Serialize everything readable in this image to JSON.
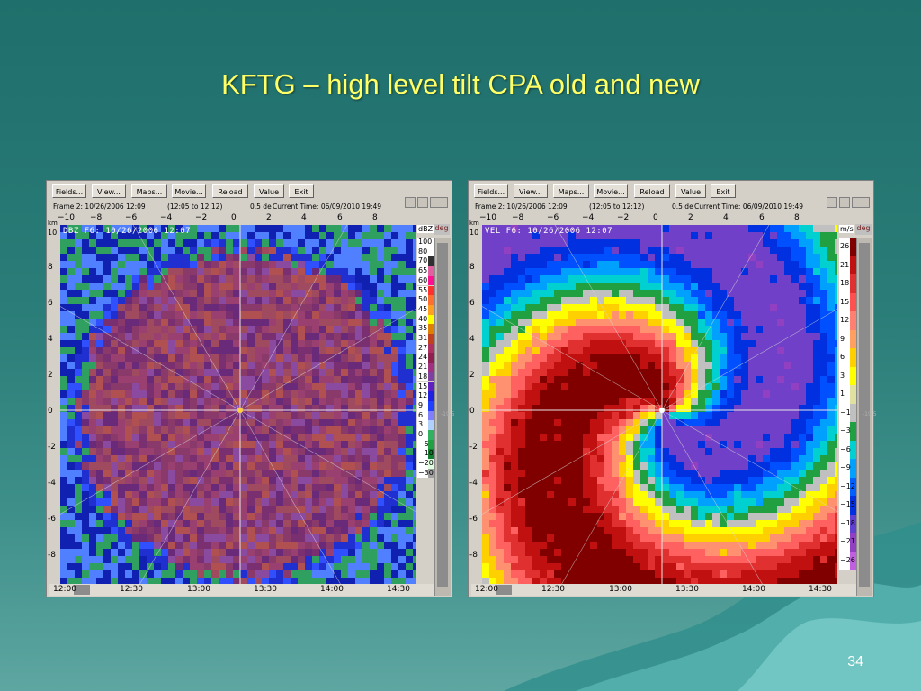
{
  "slide": {
    "title": "KFTG – high level tilt CPA old and new",
    "page_number": "34"
  },
  "panels": [
    {
      "name": "dbz",
      "buttons": [
        "Fields...",
        "View...",
        "Maps...",
        "Movie...",
        "Reload",
        "Value",
        "Exit"
      ],
      "frame_info": "Frame 2: 10/26/2006 12:09",
      "range_info": "(12:05 to 12:12)",
      "tilt_info": "0.5 de",
      "current_time": "Current Time: 06/09/2010 19:49",
      "overlay_label": "DBZ F6: 10/26/2006 12:07",
      "x_ticks": [
        "−10",
        "−8",
        "−6",
        "−4",
        "−2",
        "0",
        "2",
        "4",
        "6",
        "8"
      ],
      "y_ticks": [
        "10",
        "8",
        "6",
        "4",
        "2",
        "0",
        "-2",
        "-4",
        "-6",
        "-8"
      ],
      "axis_unit": "km",
      "colorbar_unit": "dBZ",
      "colorbar_deg": "deg",
      "side_value": "-19.5",
      "colorbar": [
        {
          "label": "100",
          "color": "#ffffff"
        },
        {
          "label": "80",
          "color": "#ffffff"
        },
        {
          "label": "70",
          "color": "#303030"
        },
        {
          "label": "65",
          "color": "#e060a0"
        },
        {
          "label": "60",
          "color": "#ff1090"
        },
        {
          "label": "55",
          "color": "#ff3030"
        },
        {
          "label": "50",
          "color": "#ff7030"
        },
        {
          "label": "45",
          "color": "#ffa020"
        },
        {
          "label": "40",
          "color": "#ffff00"
        },
        {
          "label": "35",
          "color": "#e08000"
        },
        {
          "label": "31",
          "color": "#c04020"
        },
        {
          "label": "27",
          "color": "#b03060"
        },
        {
          "label": "24",
          "color": "#902050"
        },
        {
          "label": "21",
          "color": "#a03080"
        },
        {
          "label": "18",
          "color": "#8040a0"
        },
        {
          "label": "15",
          "color": "#6020c0"
        },
        {
          "label": "12",
          "color": "#2020e0"
        },
        {
          "label": "9",
          "color": "#2040ff"
        },
        {
          "label": "6",
          "color": "#8080ff"
        },
        {
          "label": "3",
          "color": "#b0d0ff"
        },
        {
          "label": "0",
          "color": "#30b060"
        },
        {
          "label": "−5",
          "color": "#20a040"
        },
        {
          "label": "−10",
          "color": "#108030"
        },
        {
          "label": "−20",
          "color": "#e0ffe0"
        },
        {
          "label": "−30",
          "color": "#a0a0a0"
        }
      ],
      "time_labels": [
        "12:00",
        "12:30",
        "13:00",
        "13:30",
        "14:00",
        "14:30"
      ]
    },
    {
      "name": "vel",
      "buttons": [
        "Fields...",
        "View...",
        "Maps...",
        "Movie...",
        "Reload",
        "Value",
        "Exit"
      ],
      "frame_info": "Frame 2: 10/26/2006 12:09",
      "range_info": "(12:05 to 12:12)",
      "tilt_info": "0.5 de",
      "current_time": "Current Time: 06/09/2010 19:49",
      "overlay_label": "VEL F6: 10/26/2006 12:07",
      "x_ticks": [
        "−10",
        "−8",
        "−6",
        "−4",
        "−2",
        "0",
        "2",
        "4",
        "6",
        "8"
      ],
      "y_ticks": [
        "10",
        "8",
        "6",
        "4",
        "2",
        "0",
        "-2",
        "-4",
        "-6",
        "-8"
      ],
      "axis_unit": "km",
      "colorbar_unit": "m/s",
      "colorbar_deg": "deg",
      "side_value": "-19.5",
      "colorbar": [
        {
          "label": "26",
          "color": "#800000"
        },
        {
          "label": "21",
          "color": "#c01010"
        },
        {
          "label": "18",
          "color": "#e03030"
        },
        {
          "label": "15",
          "color": "#ff5050"
        },
        {
          "label": "12",
          "color": "#ff8070"
        },
        {
          "label": "9",
          "color": "#ffa060"
        },
        {
          "label": "6",
          "color": "#ffd000"
        },
        {
          "label": "3",
          "color": "#ffff00"
        },
        {
          "label": "1",
          "color": "#e0e0a0"
        },
        {
          "label": "−1",
          "color": "#c0c0c0"
        },
        {
          "label": "−3",
          "color": "#20a040"
        },
        {
          "label": "−6",
          "color": "#00d0d0"
        },
        {
          "label": "−9",
          "color": "#00a0ff"
        },
        {
          "label": "−12",
          "color": "#0060ff"
        },
        {
          "label": "−15",
          "color": "#0030e0"
        },
        {
          "label": "−18",
          "color": "#6040d0"
        },
        {
          "label": "−21",
          "color": "#9040c0"
        },
        {
          "label": "−26",
          "color": "#c060e0"
        }
      ],
      "time_labels": [
        "12:00",
        "12:30",
        "13:00",
        "13:30",
        "14:00",
        "14:30"
      ]
    }
  ]
}
